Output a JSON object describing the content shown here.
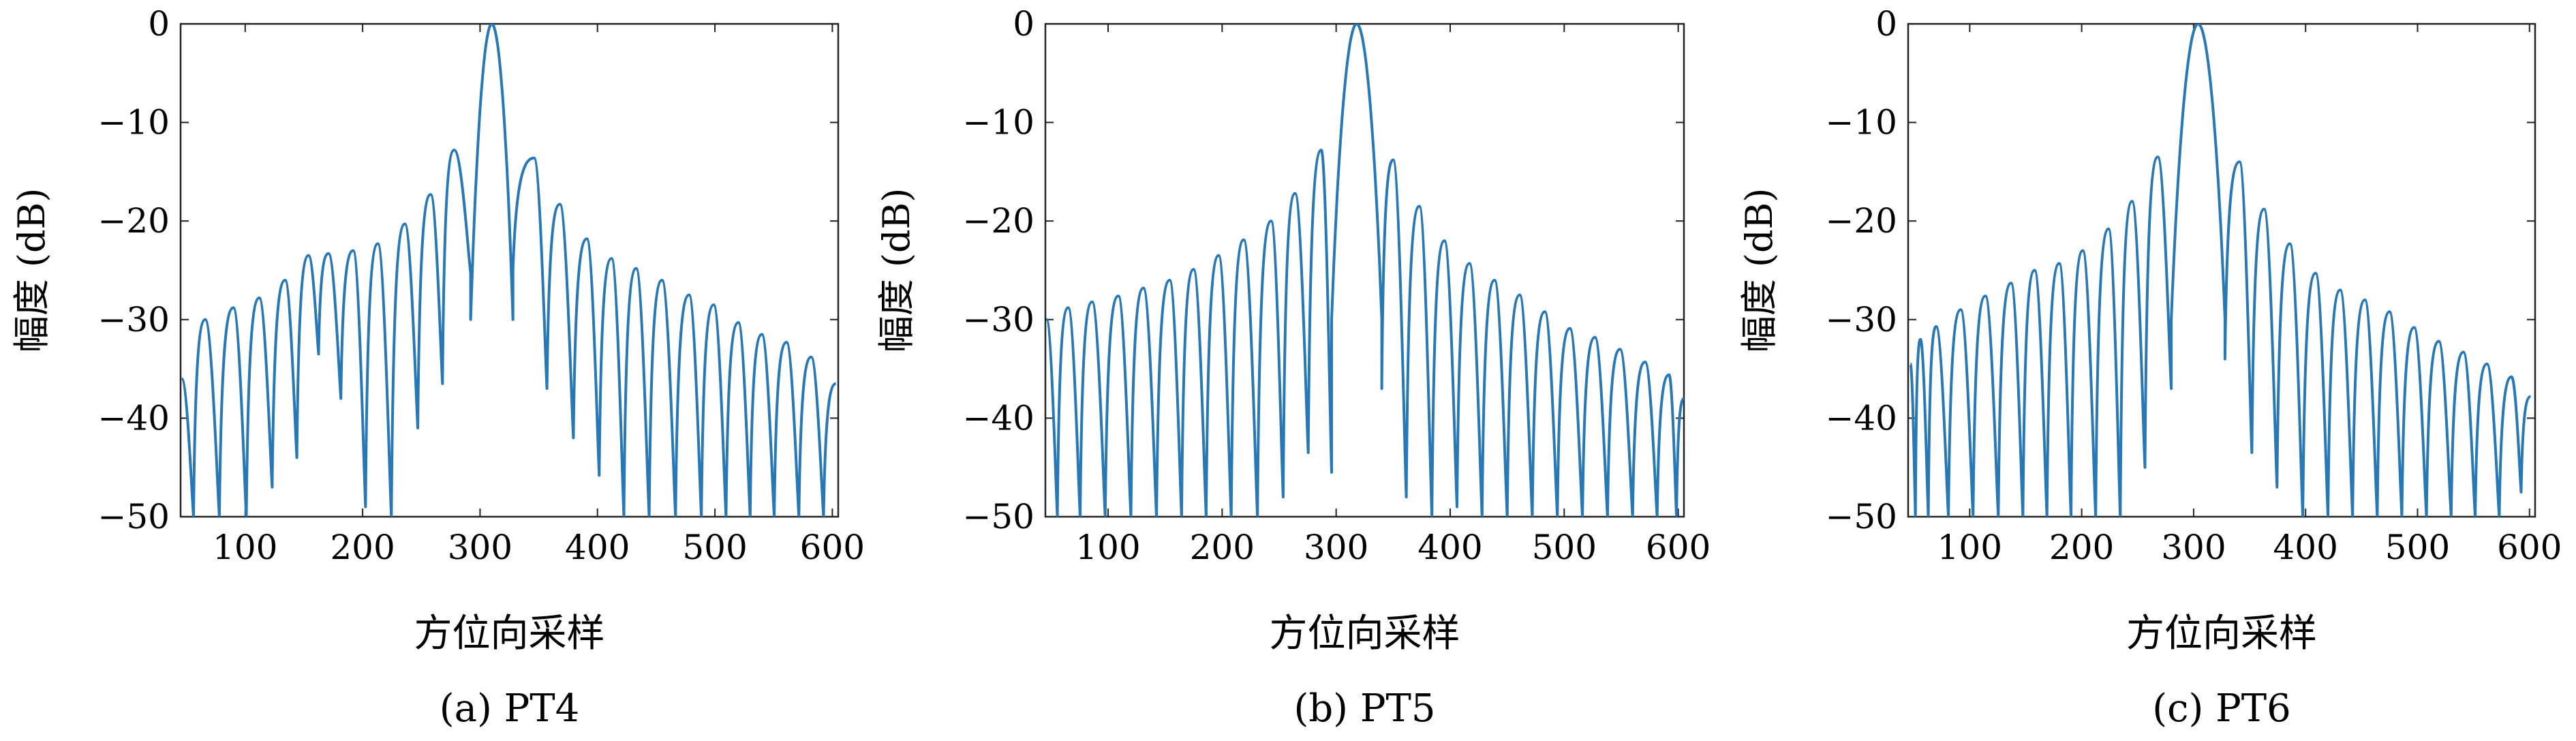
{
  "chart_data": [
    {
      "type": "line",
      "caption": "(a) PT4",
      "xlabel": "方位向采样",
      "ylabel": "幅度 (dB)",
      "xlim": [
        45,
        605
      ],
      "ylim": [
        -50,
        0
      ],
      "xticks": [
        "100",
        "200",
        "300",
        "400",
        "500",
        "600"
      ],
      "yticks": [
        "0",
        "-10",
        "-20",
        "-30",
        "-40",
        "-50"
      ],
      "grid": false,
      "series": [
        {
          "color": "#2878b5",
          "mainlobe_center": 310,
          "mainlobe_half_width": 18,
          "left_sidelobes": [
            {
              "x": 278,
              "y": -12.8
            },
            {
              "x": 258,
              "y": -17.3
            },
            {
              "x": 236,
              "y": -20.3
            },
            {
              "x": 213,
              "y": -22.3
            },
            {
              "x": 192,
              "y": -23.0
            },
            {
              "x": 171,
              "y": -23.3
            },
            {
              "x": 154,
              "y": -23.5
            },
            {
              "x": 134,
              "y": -26.0
            },
            {
              "x": 112,
              "y": -27.8
            },
            {
              "x": 90,
              "y": -28.8
            },
            {
              "x": 66,
              "y": -30.0
            },
            {
              "x": 46,
              "y": -36.0
            }
          ],
          "left_nulls": [
            -25.3,
            -36.5,
            -41.0,
            -50,
            -49.0,
            -38.0,
            -33.5,
            -44.0,
            -47.0,
            -50,
            -50,
            -50
          ],
          "right_sidelobes": [
            {
              "x": 346,
              "y": -13.6
            },
            {
              "x": 368,
              "y": -18.3
            },
            {
              "x": 391,
              "y": -21.8
            },
            {
              "x": 412,
              "y": -23.8
            },
            {
              "x": 433,
              "y": -24.8
            },
            {
              "x": 455,
              "y": -26.0
            },
            {
              "x": 478,
              "y": -27.5
            },
            {
              "x": 499,
              "y": -28.5
            },
            {
              "x": 520,
              "y": -30.3
            },
            {
              "x": 540,
              "y": -31.5
            },
            {
              "x": 561,
              "y": -32.3
            },
            {
              "x": 582,
              "y": -33.8
            },
            {
              "x": 603,
              "y": -36.5
            }
          ],
          "right_nulls": [
            -25.0,
            -37.0,
            -42.0,
            -45.8,
            -50,
            -50,
            -50,
            -50,
            -50,
            -50,
            -50,
            -50,
            -50
          ]
        }
      ]
    },
    {
      "type": "line",
      "caption": "(b) PT5",
      "xlabel": "方位向采样",
      "ylabel": "幅度 (dB)",
      "xlim": [
        45,
        605
      ],
      "ylim": [
        -50,
        0
      ],
      "xticks": [
        "100",
        "200",
        "300",
        "400",
        "500",
        "600"
      ],
      "yticks": [
        "0",
        "-10",
        "-20",
        "-30",
        "-40",
        "-50"
      ],
      "grid": false,
      "series": [
        {
          "color": "#2878b5",
          "mainlobe_center": 318,
          "mainlobe_half_width": 22,
          "left_sidelobes": [
            {
              "x": 287,
              "y": -12.8
            },
            {
              "x": 264,
              "y": -17.2
            },
            {
              "x": 243,
              "y": -20.0
            },
            {
              "x": 219,
              "y": -21.9
            },
            {
              "x": 197,
              "y": -23.5
            },
            {
              "x": 175,
              "y": -24.9
            },
            {
              "x": 154,
              "y": -26.0
            },
            {
              "x": 131,
              "y": -26.8
            },
            {
              "x": 109,
              "y": -27.6
            },
            {
              "x": 86,
              "y": -28.2
            },
            {
              "x": 65,
              "y": -28.8
            },
            {
              "x": 46,
              "y": -30.0
            }
          ],
          "left_nulls": [
            -45.5,
            -43.5,
            -48.0,
            -50,
            -50,
            -50,
            -50,
            -50,
            -50,
            -50,
            -50,
            -50
          ],
          "right_sidelobes": [
            {
              "x": 350,
              "y": -13.8
            },
            {
              "x": 373,
              "y": -18.5
            },
            {
              "x": 395,
              "y": -22.0
            },
            {
              "x": 417,
              "y": -24.3
            },
            {
              "x": 439,
              "y": -26.0
            },
            {
              "x": 461,
              "y": -27.5
            },
            {
              "x": 483,
              "y": -29.2
            },
            {
              "x": 505,
              "y": -30.9
            },
            {
              "x": 527,
              "y": -31.8
            },
            {
              "x": 549,
              "y": -33.0
            },
            {
              "x": 571,
              "y": -34.3
            },
            {
              "x": 592,
              "y": -35.6
            },
            {
              "x": 605,
              "y": -38.0
            }
          ],
          "right_nulls": [
            -37.0,
            -48.0,
            -50,
            -49.0,
            -50,
            -50,
            -50,
            -50,
            -50,
            -50,
            -50,
            -50,
            -50
          ]
        }
      ]
    },
    {
      "type": "line",
      "caption": "(c) PT6",
      "xlabel": "方位向采样",
      "ylabel": "幅度 (dB)",
      "xlim": [
        45,
        605
      ],
      "ylim": [
        -50,
        0
      ],
      "xticks": [
        "100",
        "200",
        "300",
        "400",
        "500",
        "600"
      ],
      "yticks": [
        "0",
        "-10",
        "-20",
        "-30",
        "-40",
        "-50"
      ],
      "grid": false,
      "series": [
        {
          "color": "#2878b5",
          "mainlobe_center": 304,
          "mainlobe_half_width": 24,
          "left_sidelobes": [
            {
              "x": 268,
              "y": -13.5
            },
            {
              "x": 245,
              "y": -18.0
            },
            {
              "x": 224,
              "y": -20.8
            },
            {
              "x": 201,
              "y": -23.0
            },
            {
              "x": 180,
              "y": -24.3
            },
            {
              "x": 158,
              "y": -25.0
            },
            {
              "x": 137,
              "y": -26.3
            },
            {
              "x": 114,
              "y": -27.6
            },
            {
              "x": 92,
              "y": -29.0
            },
            {
              "x": 70,
              "y": -30.7
            },
            {
              "x": 56,
              "y": -32.0
            },
            {
              "x": 47,
              "y": -34.5
            }
          ],
          "left_nulls": [
            -37.0,
            -45.0,
            -50,
            -50,
            -50,
            -50,
            -50,
            -50,
            -50,
            -50,
            -50,
            -50
          ],
          "right_sidelobes": [
            {
              "x": 341,
              "y": -14.0
            },
            {
              "x": 363,
              "y": -18.8
            },
            {
              "x": 386,
              "y": -22.3
            },
            {
              "x": 409,
              "y": -25.3
            },
            {
              "x": 431,
              "y": -27.0
            },
            {
              "x": 453,
              "y": -28.0
            },
            {
              "x": 475,
              "y": -29.2
            },
            {
              "x": 497,
              "y": -30.8
            },
            {
              "x": 519,
              "y": -32.2
            },
            {
              "x": 541,
              "y": -33.3
            },
            {
              "x": 562,
              "y": -34.5
            },
            {
              "x": 584,
              "y": -35.8
            },
            {
              "x": 601,
              "y": -37.8
            }
          ],
          "right_nulls": [
            -34.0,
            -43.5,
            -47.0,
            -50,
            -50,
            -50,
            -50,
            -50,
            -50,
            -50,
            -50,
            -50,
            -47.5
          ]
        }
      ]
    }
  ]
}
